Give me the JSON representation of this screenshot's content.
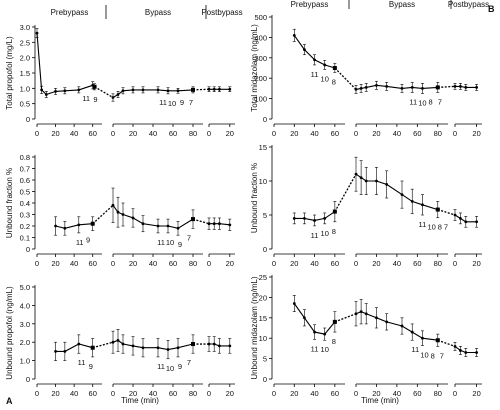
{
  "panel_labels": {
    "left": "A",
    "right": "B"
  },
  "xlabel": "Time (min)",
  "phases": [
    "Prebypass",
    "Bypass",
    "Postbypass"
  ],
  "chart_data": [
    {
      "type": "line",
      "id": "A-top",
      "ylabel": "Total propofol (mg/L)",
      "ylim": [
        0,
        3.0
      ],
      "yticks": [
        "0",
        "0.5",
        "1.0",
        "1.5",
        "2.0",
        "2.5",
        "3.0"
      ],
      "phase_ticks": [
        [
          "0",
          "20",
          "40",
          "60"
        ],
        [
          "0",
          "20",
          "40",
          "60",
          "80"
        ],
        [
          "0",
          "20"
        ]
      ],
      "series": [
        {
          "phase": 0,
          "x": [
            0,
            5,
            10,
            20,
            30,
            45,
            60,
            62
          ],
          "y": [
            2.8,
            0.95,
            0.8,
            0.9,
            0.92,
            0.95,
            1.1,
            1.05
          ],
          "err": [
            0.15,
            0.12,
            0.1,
            0.1,
            0.1,
            0.1,
            0.12,
            0.1
          ]
        },
        {
          "phase": 1,
          "x": [
            0,
            5,
            10,
            20,
            30,
            45,
            55,
            65,
            80
          ],
          "y": [
            0.7,
            0.8,
            0.92,
            0.95,
            0.95,
            0.95,
            0.92,
            0.92,
            0.95
          ],
          "err": [
            0.12,
            0.1,
            0.1,
            0.1,
            0.1,
            0.1,
            0.1,
            0.08,
            0.1
          ]
        },
        {
          "phase": 2,
          "x": [
            0,
            5,
            10,
            20
          ],
          "y": [
            0.97,
            0.97,
            0.97,
            0.97
          ],
          "err": [
            0.08,
            0.08,
            0.08,
            0.08
          ]
        }
      ],
      "annotations": [
        {
          "phase": 0,
          "x": 53,
          "text": "11"
        },
        {
          "phase": 0,
          "x": 63,
          "text": "9"
        },
        {
          "phase": 1,
          "x": 50,
          "text": "11"
        },
        {
          "phase": 1,
          "x": 59,
          "text": "10"
        },
        {
          "phase": 1,
          "x": 69,
          "text": "9"
        },
        {
          "phase": 1,
          "x": 78,
          "text": "7"
        }
      ]
    },
    {
      "type": "line",
      "id": "A-mid",
      "ylabel": "Unbound fraction %",
      "ylim": [
        0,
        0.8
      ],
      "yticks": [
        "0",
        "0.1",
        "0.2",
        "0.3",
        "0.4",
        "0.5",
        "0.6",
        "0.7",
        "0.8"
      ],
      "phase_ticks": [
        [
          "0",
          "20",
          "40",
          "60"
        ],
        [
          "0",
          "20",
          "40",
          "60",
          "80"
        ],
        [
          "0",
          "20"
        ]
      ],
      "series": [
        {
          "phase": 0,
          "x": [
            20,
            30,
            45,
            60
          ],
          "y": [
            0.2,
            0.18,
            0.21,
            0.22
          ],
          "err": [
            0.08,
            0.06,
            0.07,
            0.06
          ]
        },
        {
          "phase": 1,
          "x": [
            0,
            5,
            10,
            20,
            30,
            45,
            55,
            65,
            80
          ],
          "y": [
            0.38,
            0.32,
            0.3,
            0.27,
            0.22,
            0.2,
            0.2,
            0.18,
            0.26
          ],
          "err": [
            0.15,
            0.13,
            0.1,
            0.08,
            0.07,
            0.06,
            0.06,
            0.06,
            0.08
          ]
        },
        {
          "phase": 2,
          "x": [
            0,
            5,
            10,
            20
          ],
          "y": [
            0.22,
            0.22,
            0.22,
            0.21
          ],
          "err": [
            0.05,
            0.05,
            0.05,
            0.05
          ]
        }
      ],
      "annotations": [
        {
          "phase": 0,
          "x": 46,
          "text": "11"
        },
        {
          "phase": 0,
          "x": 55,
          "text": "9"
        },
        {
          "phase": 1,
          "x": 48,
          "text": "11"
        },
        {
          "phase": 1,
          "x": 57,
          "text": "10"
        },
        {
          "phase": 1,
          "x": 67,
          "text": "9"
        },
        {
          "phase": 1,
          "x": 76,
          "text": "7"
        }
      ]
    },
    {
      "type": "line",
      "id": "A-bot",
      "ylabel": "Unbound propofol (ng/mL)",
      "ylim": [
        0,
        5.0
      ],
      "yticks": [
        "0",
        "1.0",
        "2.0",
        "3.0",
        "4.0",
        "5.0"
      ],
      "phase_ticks": [
        [
          "0",
          "20",
          "40",
          "60"
        ],
        [
          "0",
          "20",
          "40",
          "60",
          "80"
        ],
        [
          "0",
          "20"
        ]
      ],
      "series": [
        {
          "phase": 0,
          "x": [
            20,
            30,
            45,
            60
          ],
          "y": [
            1.5,
            1.5,
            1.9,
            1.7
          ],
          "err": [
            0.5,
            0.5,
            0.5,
            0.5
          ]
        },
        {
          "phase": 1,
          "x": [
            0,
            5,
            10,
            20,
            30,
            45,
            55,
            65,
            80
          ],
          "y": [
            2.0,
            2.1,
            1.9,
            1.8,
            1.7,
            1.7,
            1.6,
            1.7,
            1.9
          ],
          "err": [
            0.6,
            0.6,
            0.5,
            0.5,
            0.5,
            0.5,
            0.5,
            0.5,
            0.5
          ]
        },
        {
          "phase": 2,
          "x": [
            0,
            5,
            10,
            20
          ],
          "y": [
            1.9,
            1.9,
            1.8,
            1.8
          ],
          "err": [
            0.4,
            0.4,
            0.4,
            0.4
          ]
        }
      ],
      "annotations": [
        {
          "phase": 0,
          "x": 48,
          "text": "11"
        },
        {
          "phase": 0,
          "x": 58,
          "text": "9"
        },
        {
          "phase": 1,
          "x": 48,
          "text": "11"
        },
        {
          "phase": 1,
          "x": 57,
          "text": "10"
        },
        {
          "phase": 1,
          "x": 67,
          "text": "9"
        },
        {
          "phase": 1,
          "x": 76,
          "text": "7"
        }
      ]
    },
    {
      "type": "line",
      "id": "B-top",
      "ylabel": "Total midazolam (ng/mL)",
      "ylim": [
        0,
        500
      ],
      "yticks": [
        "0",
        "100",
        "200",
        "300",
        "400",
        "500"
      ],
      "phase_ticks": [
        [
          "0",
          "20",
          "40",
          "60"
        ],
        [
          "0",
          "20",
          "40",
          "60",
          "80"
        ],
        [
          "0",
          "20"
        ]
      ],
      "series": [
        {
          "phase": 0,
          "x": [
            20,
            30,
            40,
            50,
            60
          ],
          "y": [
            410,
            340,
            290,
            265,
            250
          ],
          "err": [
            30,
            25,
            25,
            22,
            22
          ]
        },
        {
          "phase": 1,
          "x": [
            0,
            5,
            10,
            20,
            30,
            45,
            55,
            65,
            80
          ],
          "y": [
            145,
            150,
            155,
            165,
            160,
            150,
            155,
            150,
            155
          ],
          "err": [
            20,
            20,
            20,
            20,
            20,
            20,
            25,
            25,
            25
          ]
        },
        {
          "phase": 2,
          "x": [
            0,
            5,
            10,
            20
          ],
          "y": [
            160,
            160,
            155,
            155
          ],
          "err": [
            15,
            15,
            15,
            15
          ]
        }
      ],
      "annotations": [
        {
          "phase": 0,
          "x": 40,
          "text": "11"
        },
        {
          "phase": 0,
          "x": 50,
          "text": "10"
        },
        {
          "phase": 0,
          "x": 59,
          "text": "8"
        },
        {
          "phase": 1,
          "x": 56,
          "text": "11"
        },
        {
          "phase": 1,
          "x": 65,
          "text": "10"
        },
        {
          "phase": 1,
          "x": 73,
          "text": "8"
        },
        {
          "phase": 1,
          "x": 82,
          "text": "7"
        }
      ]
    },
    {
      "type": "line",
      "id": "B-mid",
      "ylabel": "Unbound fraction %",
      "ylim": [
        0,
        15
      ],
      "yticks": [
        "0",
        "5",
        "10",
        "15"
      ],
      "phase_ticks": [
        [
          "0",
          "20",
          "40",
          "60"
        ],
        [
          "0",
          "20",
          "40",
          "60",
          "80"
        ],
        [
          "0",
          "20"
        ]
      ],
      "series": [
        {
          "phase": 0,
          "x": [
            20,
            30,
            40,
            50,
            60
          ],
          "y": [
            4.5,
            4.5,
            4.2,
            4.5,
            5.5
          ],
          "err": [
            0.8,
            0.8,
            0.8,
            0.8,
            1.5
          ]
        },
        {
          "phase": 1,
          "x": [
            0,
            5,
            10,
            20,
            30,
            45,
            55,
            65,
            80
          ],
          "y": [
            11.0,
            10.5,
            10.0,
            10.0,
            9.5,
            8.0,
            7.0,
            6.5,
            5.8
          ],
          "err": [
            2.5,
            2.5,
            2.0,
            2.0,
            2.0,
            2.0,
            1.8,
            1.5,
            1.2
          ]
        },
        {
          "phase": 2,
          "x": [
            0,
            5,
            10,
            20
          ],
          "y": [
            5.0,
            4.5,
            4.0,
            4.0
          ],
          "err": [
            0.8,
            0.8,
            0.8,
            0.8
          ]
        }
      ],
      "annotations": [
        {
          "phase": 0,
          "x": 40,
          "text": "11"
        },
        {
          "phase": 0,
          "x": 50,
          "text": "10"
        },
        {
          "phase": 0,
          "x": 59,
          "text": "8"
        },
        {
          "phase": 1,
          "x": 65,
          "text": "11"
        },
        {
          "phase": 1,
          "x": 74,
          "text": "10"
        },
        {
          "phase": 1,
          "x": 82,
          "text": "8"
        },
        {
          "phase": 1,
          "x": 88,
          "text": "7"
        }
      ]
    },
    {
      "type": "line",
      "id": "B-bot",
      "ylabel": "Unbound midazolam (ng/mL)",
      "ylim": [
        0,
        25
      ],
      "yticks": [
        "0",
        "5",
        "10",
        "15",
        "20",
        "25"
      ],
      "phase_ticks": [
        [
          "0",
          "20",
          "40",
          "60"
        ],
        [
          "0",
          "20",
          "40",
          "60",
          "80"
        ],
        [
          "0",
          "20"
        ]
      ],
      "series": [
        {
          "phase": 0,
          "x": [
            20,
            30,
            40,
            50,
            60
          ],
          "y": [
            18.5,
            15.0,
            11.5,
            11.0,
            14.0
          ],
          "err": [
            2.0,
            2.0,
            1.8,
            1.5,
            2.5
          ]
        },
        {
          "phase": 1,
          "x": [
            0,
            5,
            10,
            20,
            30,
            45,
            55,
            65,
            80
          ],
          "y": [
            16.0,
            16.5,
            16.0,
            15.0,
            14.0,
            13.0,
            11.5,
            10.0,
            9.5
          ],
          "err": [
            3.0,
            3.0,
            2.5,
            2.5,
            2.0,
            2.0,
            2.0,
            1.8,
            1.5
          ]
        },
        {
          "phase": 2,
          "x": [
            0,
            5,
            10,
            20
          ],
          "y": [
            8.0,
            7.0,
            6.5,
            6.5
          ],
          "err": [
            1.0,
            1.0,
            1.0,
            1.0
          ]
        }
      ],
      "annotations": [
        {
          "phase": 0,
          "x": 40,
          "text": "11"
        },
        {
          "phase": 0,
          "x": 50,
          "text": "10"
        },
        {
          "phase": 0,
          "x": 59,
          "text": "8"
        },
        {
          "phase": 1,
          "x": 58,
          "text": "11"
        },
        {
          "phase": 1,
          "x": 67,
          "text": "10"
        },
        {
          "phase": 1,
          "x": 75,
          "text": "8"
        },
        {
          "phase": 1,
          "x": 84,
          "text": "7"
        }
      ]
    }
  ]
}
